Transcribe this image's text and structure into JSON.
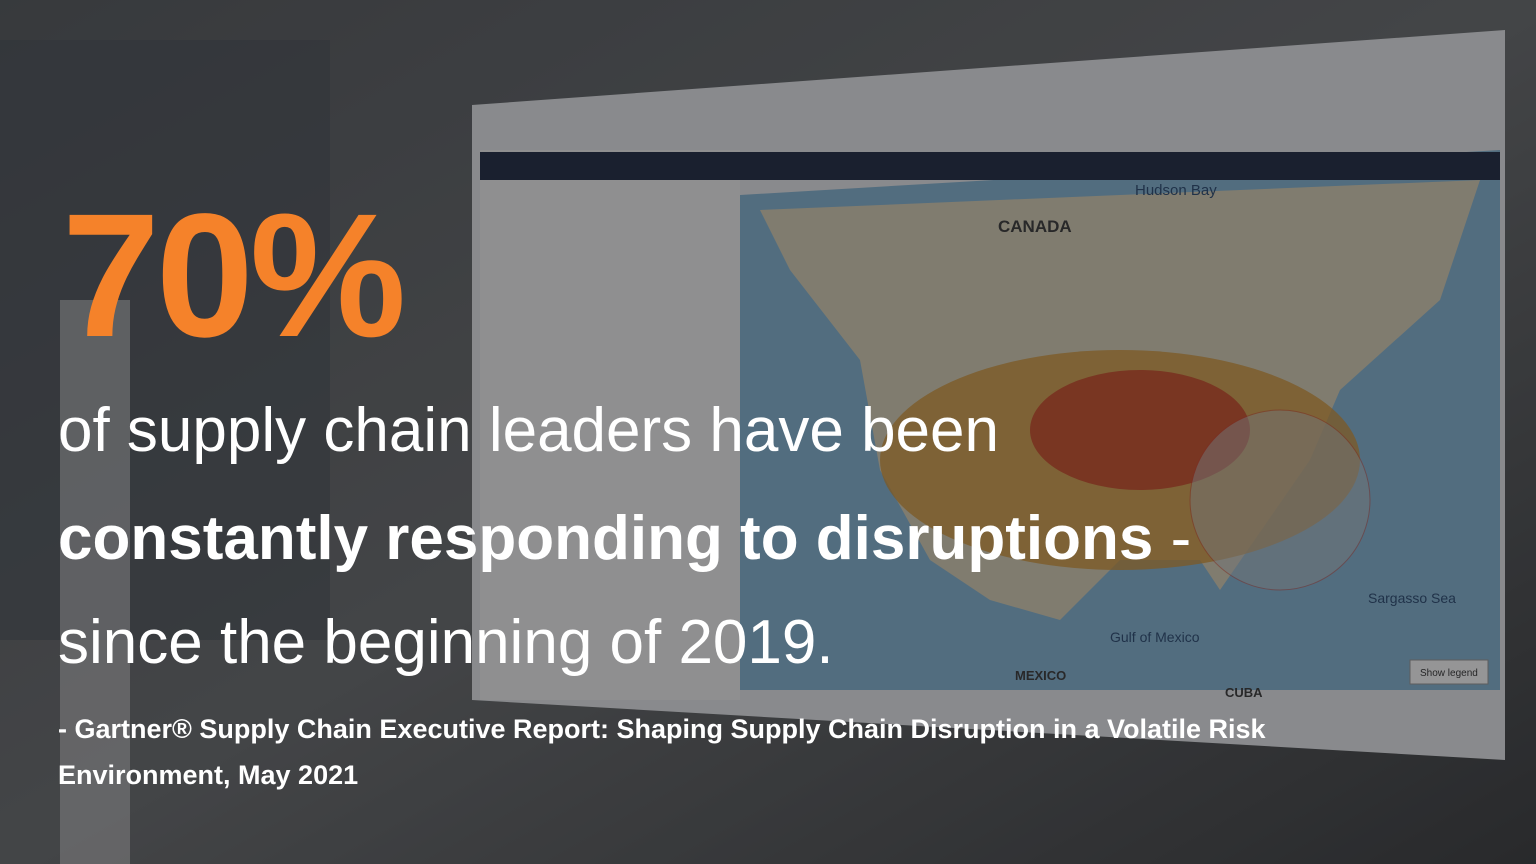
{
  "headline": {
    "stat": "70%",
    "line1": "of supply chain leaders have been",
    "line2_bold": "constantly responding to disruptions",
    "line2_tail": "-",
    "line3": "since the beginning of 2019."
  },
  "source": {
    "line1": "- Gartner® Supply Chain Executive Report: Shaping Supply Chain Disruption in a Volatile Risk",
    "line2": "Environment, May 2021"
  },
  "background_screen": {
    "map_labels": [
      "Hudson Bay",
      "CANADA",
      "Gulf of Mexico",
      "MEXICO",
      "CUBA",
      "Sargasso Sea"
    ],
    "button": "Show legend"
  }
}
